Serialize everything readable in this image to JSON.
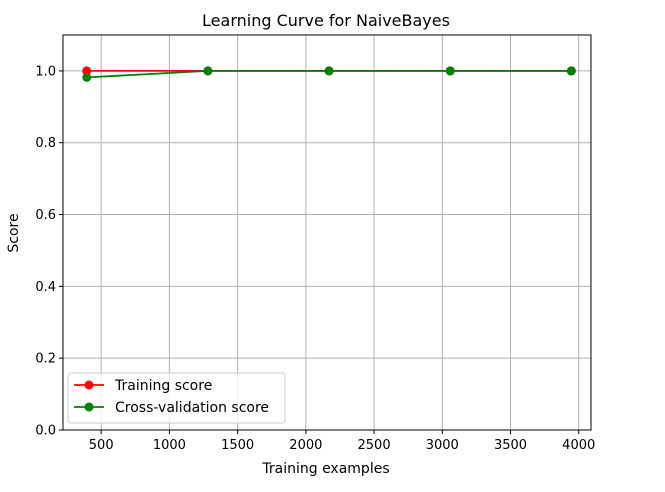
{
  "chart_data": {
    "type": "line",
    "title": "Learning Curve for NaiveBayes",
    "xlabel": "Training examples",
    "ylabel": "Score",
    "xlim": [
      220,
      4090
    ],
    "ylim": [
      0.0,
      1.1
    ],
    "xticks": [
      500,
      1000,
      1500,
      2000,
      2500,
      3000,
      3500,
      4000
    ],
    "yticks": [
      0.0,
      0.2,
      0.4,
      0.6,
      0.8,
      1.0
    ],
    "xtick_labels": [
      "500",
      "1000",
      "1500",
      "2000",
      "2500",
      "3000",
      "3500",
      "4000"
    ],
    "ytick_labels": [
      "0.0",
      "0.2",
      "0.4",
      "0.6",
      "0.8",
      "1.0"
    ],
    "grid": true,
    "legend": "lower-left",
    "x": [
      394,
      1282,
      2170,
      3058,
      3946
    ],
    "series": [
      {
        "name": "Training score",
        "color": "#ff0000",
        "values": [
          1.0,
          1.0,
          1.0,
          1.0,
          1.0
        ]
      },
      {
        "name": "Cross-validation score",
        "color": "#008000",
        "values": [
          0.982,
          1.0,
          1.0,
          1.0,
          1.0
        ]
      }
    ]
  }
}
